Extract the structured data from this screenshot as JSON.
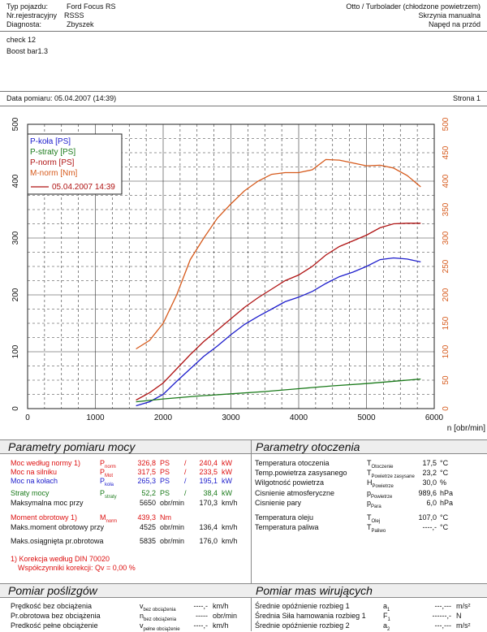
{
  "header": {
    "vehicle_label": "Typ pojazdu:",
    "vehicle_value": "Ford Focus RS",
    "reg_label": "Nr.rejestracyjny",
    "reg_value": "RSSS",
    "diag_label": "Diagnosta:",
    "diag_value": "Zbyszek",
    "engine": "Otto / Turbolader (chłodzone powietrzem)",
    "gearbox": "Skrzynia manualna",
    "drive": "Napęd na przód",
    "note1": "check 12",
    "note2": "Boost bar1.3",
    "date_label": "Data pomiaru: 05.04.2007 (14:39)",
    "page_label": "Strona 1"
  },
  "colors": {
    "p_wheel": "#1d1dcc",
    "p_loss": "#1a7a1a",
    "p_norm": "#b01414",
    "m_norm": "#d65a1c"
  },
  "chart_data": {
    "type": "line",
    "xlabel": "n [obr/min]",
    "xlim": [
      0,
      6000
    ],
    "ylim_left": [
      0,
      500
    ],
    "ylim_right": [
      0,
      500
    ],
    "x_ticks": [
      "0",
      "1000",
      "2000",
      "3000",
      "4000",
      "5000",
      "6000"
    ],
    "y_ticks": [
      "0",
      "100",
      "200",
      "300",
      "400",
      "500"
    ],
    "y_ticks_right": [
      "0",
      "50",
      "100",
      "150",
      "200",
      "250",
      "300",
      "350",
      "400",
      "450",
      "500"
    ],
    "grid": true,
    "legend_position": "top-left",
    "series": [
      {
        "name": "P-koła [PS]",
        "color": "#1d1dcc",
        "x": [
          1600,
          1800,
          2000,
          2200,
          2400,
          2600,
          2800,
          3000,
          3200,
          3400,
          3600,
          3800,
          4000,
          4200,
          4400,
          4600,
          4800,
          5000,
          5200,
          5400,
          5600,
          5800
        ],
        "y": [
          5,
          12,
          25,
          48,
          70,
          92,
          110,
          130,
          148,
          162,
          175,
          188,
          196,
          206,
          220,
          232,
          240,
          250,
          262,
          265,
          263,
          258
        ]
      },
      {
        "name": "P-straty [PS]",
        "color": "#1a7a1a",
        "x": [
          1600,
          2000,
          2500,
          3000,
          3500,
          4000,
          4500,
          5000,
          5500,
          5800
        ],
        "y": [
          12,
          17,
          22,
          26,
          30,
          35,
          40,
          44,
          49,
          52
        ]
      },
      {
        "name": "P-norm [PS]",
        "color": "#b01414",
        "x": [
          1600,
          1800,
          2000,
          2200,
          2400,
          2600,
          2800,
          3000,
          3200,
          3400,
          3600,
          3800,
          4000,
          4200,
          4400,
          4600,
          4800,
          5000,
          5200,
          5400,
          5600,
          5800
        ],
        "y": [
          15,
          28,
          45,
          70,
          95,
          118,
          138,
          158,
          178,
          195,
          210,
          225,
          235,
          250,
          270,
          285,
          295,
          305,
          318,
          325,
          326,
          326
        ]
      },
      {
        "name": "M-norm [Nm]",
        "color": "#d65a1c",
        "x": [
          1600,
          1800,
          2000,
          2200,
          2400,
          2600,
          2800,
          3000,
          3200,
          3400,
          3600,
          3800,
          4000,
          4200,
          4400,
          4600,
          4800,
          5000,
          5200,
          5400,
          5600,
          5800
        ],
        "y": [
          105,
          120,
          150,
          200,
          262,
          300,
          335,
          360,
          383,
          400,
          412,
          415,
          415,
          420,
          438,
          437,
          432,
          427,
          428,
          423,
          410,
          390
        ]
      }
    ],
    "legend_date": "05.04.2007 14:39"
  },
  "power": {
    "title": "Parametry pomiaru mocy",
    "rows": [
      {
        "label": "Moc według normy 1)",
        "sym": "P",
        "sub": "norm",
        "v1": "326,8",
        "u1": "PS",
        "sep": "/",
        "v2": "240,4",
        "u2": "kW",
        "color": "red"
      },
      {
        "label": "Moc na silniku",
        "sym": "P",
        "sub": "Mot",
        "v1": "317,5",
        "u1": "PS",
        "sep": "/",
        "v2": "233,5",
        "u2": "kW",
        "color": "red"
      },
      {
        "label": "Moc na kołach",
        "sym": "P",
        "sub": "koła",
        "v1": "265,3",
        "u1": "PS",
        "sep": "/",
        "v2": "195,1",
        "u2": "kW",
        "color": "blue"
      },
      {
        "label": "Straty mocy",
        "sym": "P",
        "sub": "straty",
        "v1": "52,2",
        "u1": "PS",
        "sep": "/",
        "v2": "38,4",
        "u2": "kW",
        "color": "green"
      },
      {
        "label": "Maksymalna moc przy",
        "sym": "",
        "sub": "",
        "v1": "5650",
        "u1": "obr/min",
        "sep": "",
        "v2": "170,3",
        "u2": "km/h",
        "color": "black"
      },
      {
        "label": "Moment obrotowy 1)",
        "sym": "M",
        "sub": "norm",
        "v1": "439,3",
        "u1": "Nm",
        "sep": "",
        "v2": "",
        "u2": "",
        "color": "red"
      },
      {
        "label": "Maks.moment obrotowy przy",
        "sym": "",
        "sub": "",
        "v1": "4525",
        "u1": "obr/min",
        "sep": "",
        "v2": "136,4",
        "u2": "km/h",
        "color": "black"
      },
      {
        "label": "Maks.osiągnięta pr.obrotowa",
        "sym": "",
        "sub": "",
        "v1": "5835",
        "u1": "obr/min",
        "sep": "",
        "v2": "176,0",
        "u2": "km/h",
        "color": "black"
      }
    ],
    "note1": "1) Korekcja według DIN 70020",
    "note2": "Współczynniki korekcji: Qv =   0,00 %"
  },
  "env": {
    "title": "Parametry otoczenia",
    "rows": [
      {
        "label": "Temperatura otoczenia",
        "sym": "T",
        "sub": "Otoczenie",
        "val": "17,5",
        "unit": "°C"
      },
      {
        "label": "Temp.powietrza zasysanego",
        "sym": "T",
        "sub": "Powietrze zasysane",
        "val": "23,2",
        "unit": "°C"
      },
      {
        "label": "Wilgotność powietrza",
        "sym": "H",
        "sub": "Powietrze",
        "val": "30,0",
        "unit": "%"
      },
      {
        "label": "Cisnienie atmosferyczne",
        "sym": "p",
        "sub": "Powietrze",
        "val": "989,6",
        "unit": "hPa"
      },
      {
        "label": "Cisnienie pary",
        "sym": "p",
        "sub": "Para",
        "val": "6,0",
        "unit": "hPa"
      },
      {
        "label": "Temperatura oleju",
        "sym": "T",
        "sub": "Olej",
        "val": "107,0",
        "unit": "°C"
      },
      {
        "label": "Temperatura paliwa",
        "sym": "T",
        "sub": "Paliwo",
        "val": "----,-",
        "unit": "°C"
      }
    ]
  },
  "slip": {
    "title": "Pomiar poślizgów",
    "rows": [
      {
        "label": "Prędkość bez obciążenia",
        "sym": "v",
        "sub": "bez obciążenia",
        "val": "----,-",
        "unit": "km/h"
      },
      {
        "label": "Pr.obrotowa bez obciążenia",
        "sym": "n",
        "sub": "bez obciążenia",
        "val": "-----",
        "unit": "obr/min"
      },
      {
        "label": "Predkość pełne obciążenie",
        "sym": "v",
        "sub": "pełne obciążenie",
        "val": "----,-",
        "unit": "km/h"
      }
    ]
  },
  "mass": {
    "title": "Pomiar mas wirujących",
    "rows": [
      {
        "label": "Średnie opóźnienie rozbieg 1",
        "sym": "a",
        "sub": "1",
        "val": "---,---",
        "unit": "m/s²"
      },
      {
        "label": "Średnia Siła hamowania rozbieg 1",
        "sym": "F",
        "sub": "1",
        "val": "------,-",
        "unit": "N"
      },
      {
        "label": "Średnie opóźnienie rozbieg 2",
        "sym": "a",
        "sub": "2",
        "val": "---,---",
        "unit": "m/s²"
      }
    ]
  }
}
